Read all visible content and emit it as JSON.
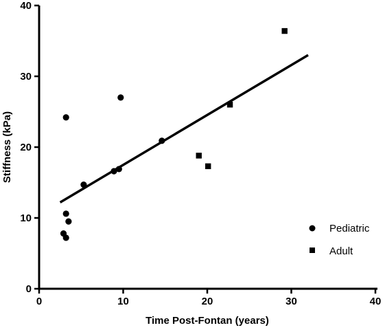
{
  "chart_data": {
    "type": "scatter",
    "xlabel": "Time Post-Fontan (years)",
    "ylabel": "Stiffness (kPa)",
    "xlim": [
      0,
      40
    ],
    "ylim": [
      0,
      40
    ],
    "xticks": [
      0,
      10,
      20,
      30,
      40
    ],
    "yticks": [
      0,
      10,
      20,
      30,
      40
    ],
    "grid": false,
    "legend_position": "bottom-right",
    "series": [
      {
        "name": "Pediatric",
        "marker": "circle",
        "color": "#000000",
        "points": [
          {
            "x": 2.9,
            "y": 7.8
          },
          {
            "x": 3.2,
            "y": 7.2
          },
          {
            "x": 3.2,
            "y": 10.6
          },
          {
            "x": 3.5,
            "y": 9.5
          },
          {
            "x": 3.2,
            "y": 24.2
          },
          {
            "x": 5.3,
            "y": 14.7
          },
          {
            "x": 8.9,
            "y": 16.6
          },
          {
            "x": 9.5,
            "y": 16.9
          },
          {
            "x": 9.7,
            "y": 27.0
          },
          {
            "x": 14.6,
            "y": 20.9
          }
        ]
      },
      {
        "name": "Adult",
        "marker": "square",
        "color": "#000000",
        "points": [
          {
            "x": 19.0,
            "y": 18.8
          },
          {
            "x": 20.1,
            "y": 17.3
          },
          {
            "x": 22.7,
            "y": 26.0
          },
          {
            "x": 29.2,
            "y": 36.4
          }
        ]
      }
    ],
    "trendline": {
      "x": [
        2.5,
        32.0
      ],
      "y": [
        12.2,
        33.0
      ]
    }
  }
}
